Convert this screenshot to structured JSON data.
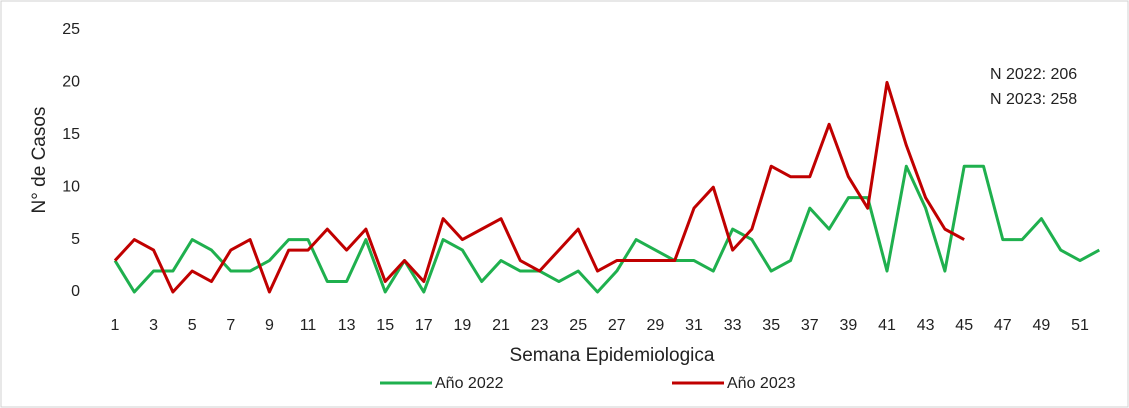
{
  "chart_data": {
    "type": "line",
    "xlabel": "Semana Epidemiologica",
    "ylabel": "N° de Casos",
    "annotations": [
      "N 2022: 206",
      "N 2023: 258"
    ],
    "categories": [
      1,
      null,
      3,
      null,
      5,
      null,
      7,
      null,
      9,
      null,
      11,
      null,
      13,
      null,
      15,
      null,
      17,
      null,
      19,
      null,
      21,
      null,
      23,
      null,
      25,
      null,
      27,
      null,
      29,
      null,
      31,
      null,
      33,
      null,
      35,
      null,
      37,
      null,
      39,
      null,
      41,
      null,
      43,
      null,
      45,
      null,
      47,
      null,
      49,
      null,
      51,
      null
    ],
    "series": [
      {
        "name": "Año 2022",
        "color": "#1fb04e",
        "values": [
          3,
          0,
          2,
          2,
          5,
          4,
          2,
          2,
          3,
          5,
          5,
          1,
          1,
          5,
          0,
          3,
          0,
          5,
          4,
          1,
          3,
          2,
          2,
          1,
          2,
          0,
          2,
          5,
          4,
          3,
          3,
          2,
          6,
          5,
          2,
          3,
          8,
          6,
          9,
          9,
          2,
          12,
          8,
          2,
          12,
          12,
          5,
          5,
          7,
          4,
          3,
          4
        ]
      },
      {
        "name": "Año 2023",
        "color": "#c00000",
        "values": [
          3,
          5,
          4,
          0,
          2,
          1,
          4,
          5,
          0,
          4,
          4,
          6,
          4,
          6,
          1,
          3,
          1,
          7,
          5,
          6,
          7,
          3,
          2,
          4,
          6,
          2,
          3,
          3,
          3,
          3,
          8,
          10,
          4,
          6,
          12,
          11,
          11,
          16,
          11,
          8,
          20,
          14,
          9,
          6,
          5,
          null,
          null,
          null,
          null,
          null,
          null,
          null
        ]
      }
    ],
    "ylim": [
      0,
      25
    ],
    "yticks": [
      0,
      5,
      10,
      15,
      20,
      25
    ],
    "grid": false,
    "legend": "bottom"
  }
}
